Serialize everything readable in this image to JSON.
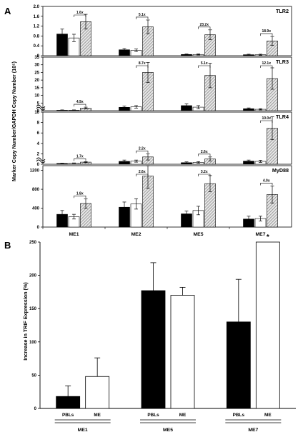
{
  "figure": {
    "label_a": "A",
    "label_b": "B"
  },
  "colors": {
    "black": "#000000",
    "white": "#ffffff",
    "hatch": "#7a7a7a",
    "axis": "#000000"
  },
  "chart_data": [
    {
      "panel": "A",
      "type": "bar",
      "ylabel": "Marker Copy Number/GAPDH Copy Number (10⁵)",
      "categories": [
        "ME1",
        "ME2",
        "ME5",
        "ME7"
      ],
      "bar_styles": [
        "solid-black",
        "white",
        "hatched"
      ],
      "subplots": [
        {
          "name": "TLR2",
          "ylim": [
            0,
            2.0
          ],
          "ticks": [
            "0",
            "0.4",
            "0.8",
            "1.2",
            "1.6",
            "2.0"
          ],
          "break": false,
          "series": [
            {
              "values": [
                0.88,
                0.24,
                0.05,
                0.04
              ],
              "errors": [
                0.2,
                0.05,
                0.02,
                0.02
              ]
            },
            {
              "values": [
                0.72,
                0.22,
                0.05,
                0.04
              ],
              "errors": [
                0.15,
                0.05,
                0.02,
                0.02
              ]
            },
            {
              "values": [
                1.38,
                1.17,
                0.85,
                0.6
              ],
              "errors": [
                0.3,
                0.28,
                0.2,
                0.18
              ]
            }
          ],
          "fold_changes": [
            "1.6x",
            "5.1x",
            "23.2x",
            "18.9x"
          ]
        },
        {
          "name": "TLR3",
          "ylim": [
            0,
            35
          ],
          "ticks": [
            "0",
            "5",
            "10",
            "15",
            "20",
            "25",
            "30",
            "35"
          ],
          "break": true,
          "series": [
            {
              "values": [
                0.3,
                2.2,
                3.3,
                1.3
              ],
              "errors": [
                0.2,
                0.8,
                1.2,
                0.5
              ]
            },
            {
              "values": [
                0.3,
                2.5,
                2.3,
                0.9
              ],
              "errors": [
                0.2,
                0.8,
                1.0,
                0.4
              ]
            },
            {
              "values": [
                1.7,
                25,
                23,
                21
              ],
              "errors": [
                0.6,
                6.5,
                8.0,
                7.0
              ]
            }
          ],
          "fold_changes": [
            "4.9x",
            "8.7x",
            "5.1x",
            "12.1x"
          ]
        },
        {
          "name": "TLR4",
          "ylim": [
            0,
            10
          ],
          "ticks": [
            "0",
            "2",
            "4",
            "6",
            "8",
            "10"
          ],
          "break": true,
          "series": [
            {
              "values": [
                0.15,
                0.55,
                0.3,
                0.6
              ],
              "errors": [
                0.05,
                0.25,
                0.15,
                0.2
              ]
            },
            {
              "values": [
                0.2,
                0.6,
                0.35,
                0.55
              ],
              "errors": [
                0.05,
                0.2,
                0.15,
                0.2
              ]
            },
            {
              "values": [
                0.4,
                1.4,
                1.0,
                6.9
              ],
              "errors": [
                0.1,
                0.6,
                0.4,
                2.2
              ]
            }
          ],
          "fold_changes": [
            "1.7x",
            "2.2x",
            "2.6x",
            "10.0x"
          ]
        },
        {
          "name": "MyD88",
          "ylim": [
            0,
            1300
          ],
          "ticks": [
            "0",
            "400",
            "800",
            "1200"
          ],
          "break": false,
          "series": [
            {
              "values": [
                270,
                420,
                280,
                170
              ],
              "errors": [
                80,
                110,
                60,
                60
              ]
            },
            {
              "values": [
                220,
                490,
                350,
                180
              ],
              "errors": [
                50,
                110,
                90,
                50
              ]
            },
            {
              "values": [
                500,
                1080,
                920,
                690
              ],
              "errors": [
                100,
                260,
                170,
                180
              ]
            }
          ],
          "fold_changes": [
            "1.8x",
            "2.6x",
            "3.2x",
            "4.0x"
          ]
        }
      ]
    },
    {
      "panel": "B",
      "type": "bar",
      "ylabel": "Increase in TRIF Expression (%)",
      "ylim": [
        0,
        250
      ],
      "ticks": [
        "0",
        "50",
        "100",
        "150",
        "200",
        "250"
      ],
      "groups": [
        "ME1",
        "ME5",
        "ME7"
      ],
      "bar_labels": [
        "PBLs",
        "ME"
      ],
      "series": [
        {
          "name": "PBLs",
          "values": [
            18,
            177,
            130
          ],
          "errors": [
            16,
            42,
            64
          ]
        },
        {
          "name": "ME",
          "values": [
            48,
            170,
            250
          ],
          "errors": [
            28,
            12,
            0
          ]
        }
      ],
      "annotations": [
        {
          "group": "ME7",
          "bar": "ME",
          "text": "*"
        }
      ]
    }
  ]
}
